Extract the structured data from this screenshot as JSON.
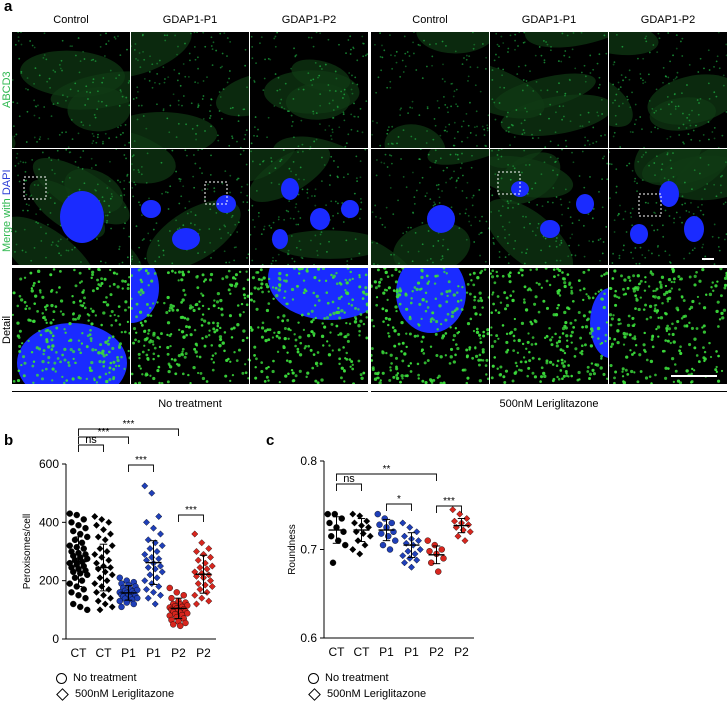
{
  "panel_a": {
    "letter": "a",
    "column_labels": [
      "Control",
      "GDAP1-P1",
      "GDAP1-P2",
      "Control",
      "GDAP1-P1",
      "GDAP1-P2"
    ],
    "row_labels": {
      "abcd3": "ABCD3",
      "merge_prefix": "Merge with ",
      "dapi": "DAPI",
      "detail": "Detail"
    },
    "condition_labels": [
      "No treatment",
      "500nM Leriglitazone"
    ],
    "colors": {
      "abcd3": "#22c44a",
      "dapi": "#1a2bff",
      "merge_label_green": "#2eb84f",
      "merge_label_blue": "#2a3bd6"
    }
  },
  "panel_b": {
    "letter": "b",
    "legend": {
      "circle": "No treatment",
      "diamond": "500nM Leriglitazone"
    },
    "significance": [
      "ns",
      "***",
      "***",
      "***",
      "***"
    ]
  },
  "panel_c": {
    "letter": "c",
    "legend": {
      "circle": "No treatment",
      "diamond": "500nM Leriglitazone"
    },
    "significance": [
      "ns",
      "**",
      "*",
      "***"
    ]
  },
  "chart_data": [
    {
      "type": "scatter",
      "id": "b",
      "ylabel": "Peroxisomes/cell",
      "ylim": [
        0,
        600
      ],
      "yticks": [
        0,
        200,
        400,
        600
      ],
      "categories": [
        "CT",
        "CT",
        "P1",
        "P1",
        "P2",
        "P2"
      ],
      "markers": [
        "circle",
        "diamond",
        "circle",
        "diamond",
        "circle",
        "diamond"
      ],
      "colors": [
        "#000000",
        "#000000",
        "#1f3fb8",
        "#1f3fb8",
        "#d7261e",
        "#d7261e"
      ],
      "means": [
        265,
        245,
        158,
        262,
        105,
        222
      ],
      "sd": [
        85,
        80,
        25,
        75,
        35,
        65
      ],
      "values": [
        [
          430,
          425,
          410,
          400,
          390,
          380,
          370,
          360,
          350,
          340,
          330,
          320,
          315,
          310,
          300,
          295,
          290,
          285,
          280,
          275,
          270,
          265,
          260,
          255,
          250,
          245,
          240,
          235,
          230,
          225,
          220,
          210,
          200,
          190,
          180,
          170,
          160,
          150,
          140,
          120,
          110,
          100
        ],
        [
          420,
          410,
          400,
          390,
          375,
          360,
          350,
          340,
          320,
          310,
          300,
          290,
          280,
          270,
          260,
          250,
          245,
          240,
          230,
          220,
          210,
          200,
          190,
          180,
          170,
          160,
          150,
          140,
          130,
          120,
          110,
          100
        ],
        [
          210,
          200,
          195,
          190,
          185,
          180,
          175,
          170,
          168,
          165,
          162,
          160,
          158,
          155,
          152,
          150,
          148,
          145,
          142,
          140,
          138,
          135,
          130,
          125,
          120,
          110
        ],
        [
          525,
          500,
          420,
          400,
          380,
          360,
          340,
          330,
          320,
          310,
          300,
          290,
          280,
          275,
          270,
          260,
          250,
          245,
          240,
          230,
          220,
          210,
          200,
          190,
          180,
          170,
          160,
          150,
          140,
          120
        ],
        [
          175,
          160,
          150,
          140,
          130,
          125,
          120,
          118,
          115,
          112,
          110,
          108,
          105,
          102,
          100,
          98,
          95,
          92,
          90,
          88,
          85,
          82,
          80,
          75,
          70,
          65,
          60,
          55,
          50,
          45
        ],
        [
          360,
          330,
          310,
          300,
          290,
          280,
          270,
          260,
          250,
          245,
          240,
          230,
          225,
          220,
          215,
          210,
          200,
          190,
          185,
          180,
          170,
          160,
          150,
          140,
          130,
          120
        ]
      ],
      "comparisons": [
        {
          "from": 0,
          "to": 1,
          "label": "ns"
        },
        {
          "from": 0,
          "to": 2,
          "label": "***"
        },
        {
          "from": 0,
          "to": 4,
          "label": "***"
        },
        {
          "from": 2,
          "to": 3,
          "label": "***"
        },
        {
          "from": 4,
          "to": 5,
          "label": "***"
        }
      ]
    },
    {
      "type": "scatter",
      "id": "c",
      "ylabel": "Roundness",
      "ylim": [
        0.6,
        0.8
      ],
      "yticks": [
        0.6,
        0.7,
        0.8
      ],
      "categories": [
        "CT",
        "CT",
        "P1",
        "P1",
        "P2",
        "P2"
      ],
      "markers": [
        "circle",
        "diamond",
        "circle",
        "diamond",
        "circle",
        "diamond"
      ],
      "colors": [
        "#000000",
        "#000000",
        "#1f3fb8",
        "#1f3fb8",
        "#d7261e",
        "#d7261e"
      ],
      "means": [
        0.722,
        0.722,
        0.722,
        0.705,
        0.694,
        0.727
      ],
      "sd": [
        0.015,
        0.013,
        0.012,
        0.014,
        0.01,
        0.008
      ],
      "values": [
        [
          0.74,
          0.74,
          0.735,
          0.73,
          0.725,
          0.72,
          0.715,
          0.71,
          0.705,
          0.685
        ],
        [
          0.74,
          0.738,
          0.732,
          0.73,
          0.727,
          0.725,
          0.72,
          0.718,
          0.715,
          0.71,
          0.705,
          0.7,
          0.695
        ],
        [
          0.74,
          0.735,
          0.73,
          0.728,
          0.725,
          0.72,
          0.718,
          0.715,
          0.71,
          0.705,
          0.7
        ],
        [
          0.73,
          0.725,
          0.72,
          0.715,
          0.712,
          0.71,
          0.707,
          0.705,
          0.7,
          0.698,
          0.695,
          0.693,
          0.69,
          0.688,
          0.685,
          0.68
        ],
        [
          0.71,
          0.705,
          0.7,
          0.698,
          0.695,
          0.69,
          0.685,
          0.675
        ],
        [
          0.745,
          0.74,
          0.735,
          0.732,
          0.73,
          0.728,
          0.725,
          0.722,
          0.72,
          0.715,
          0.71
        ]
      ],
      "comparisons": [
        {
          "from": 0,
          "to": 1,
          "label": "ns"
        },
        {
          "from": 0,
          "to": 4,
          "label": "**"
        },
        {
          "from": 2,
          "to": 3,
          "label": "*"
        },
        {
          "from": 4,
          "to": 5,
          "label": "***"
        }
      ]
    }
  ]
}
